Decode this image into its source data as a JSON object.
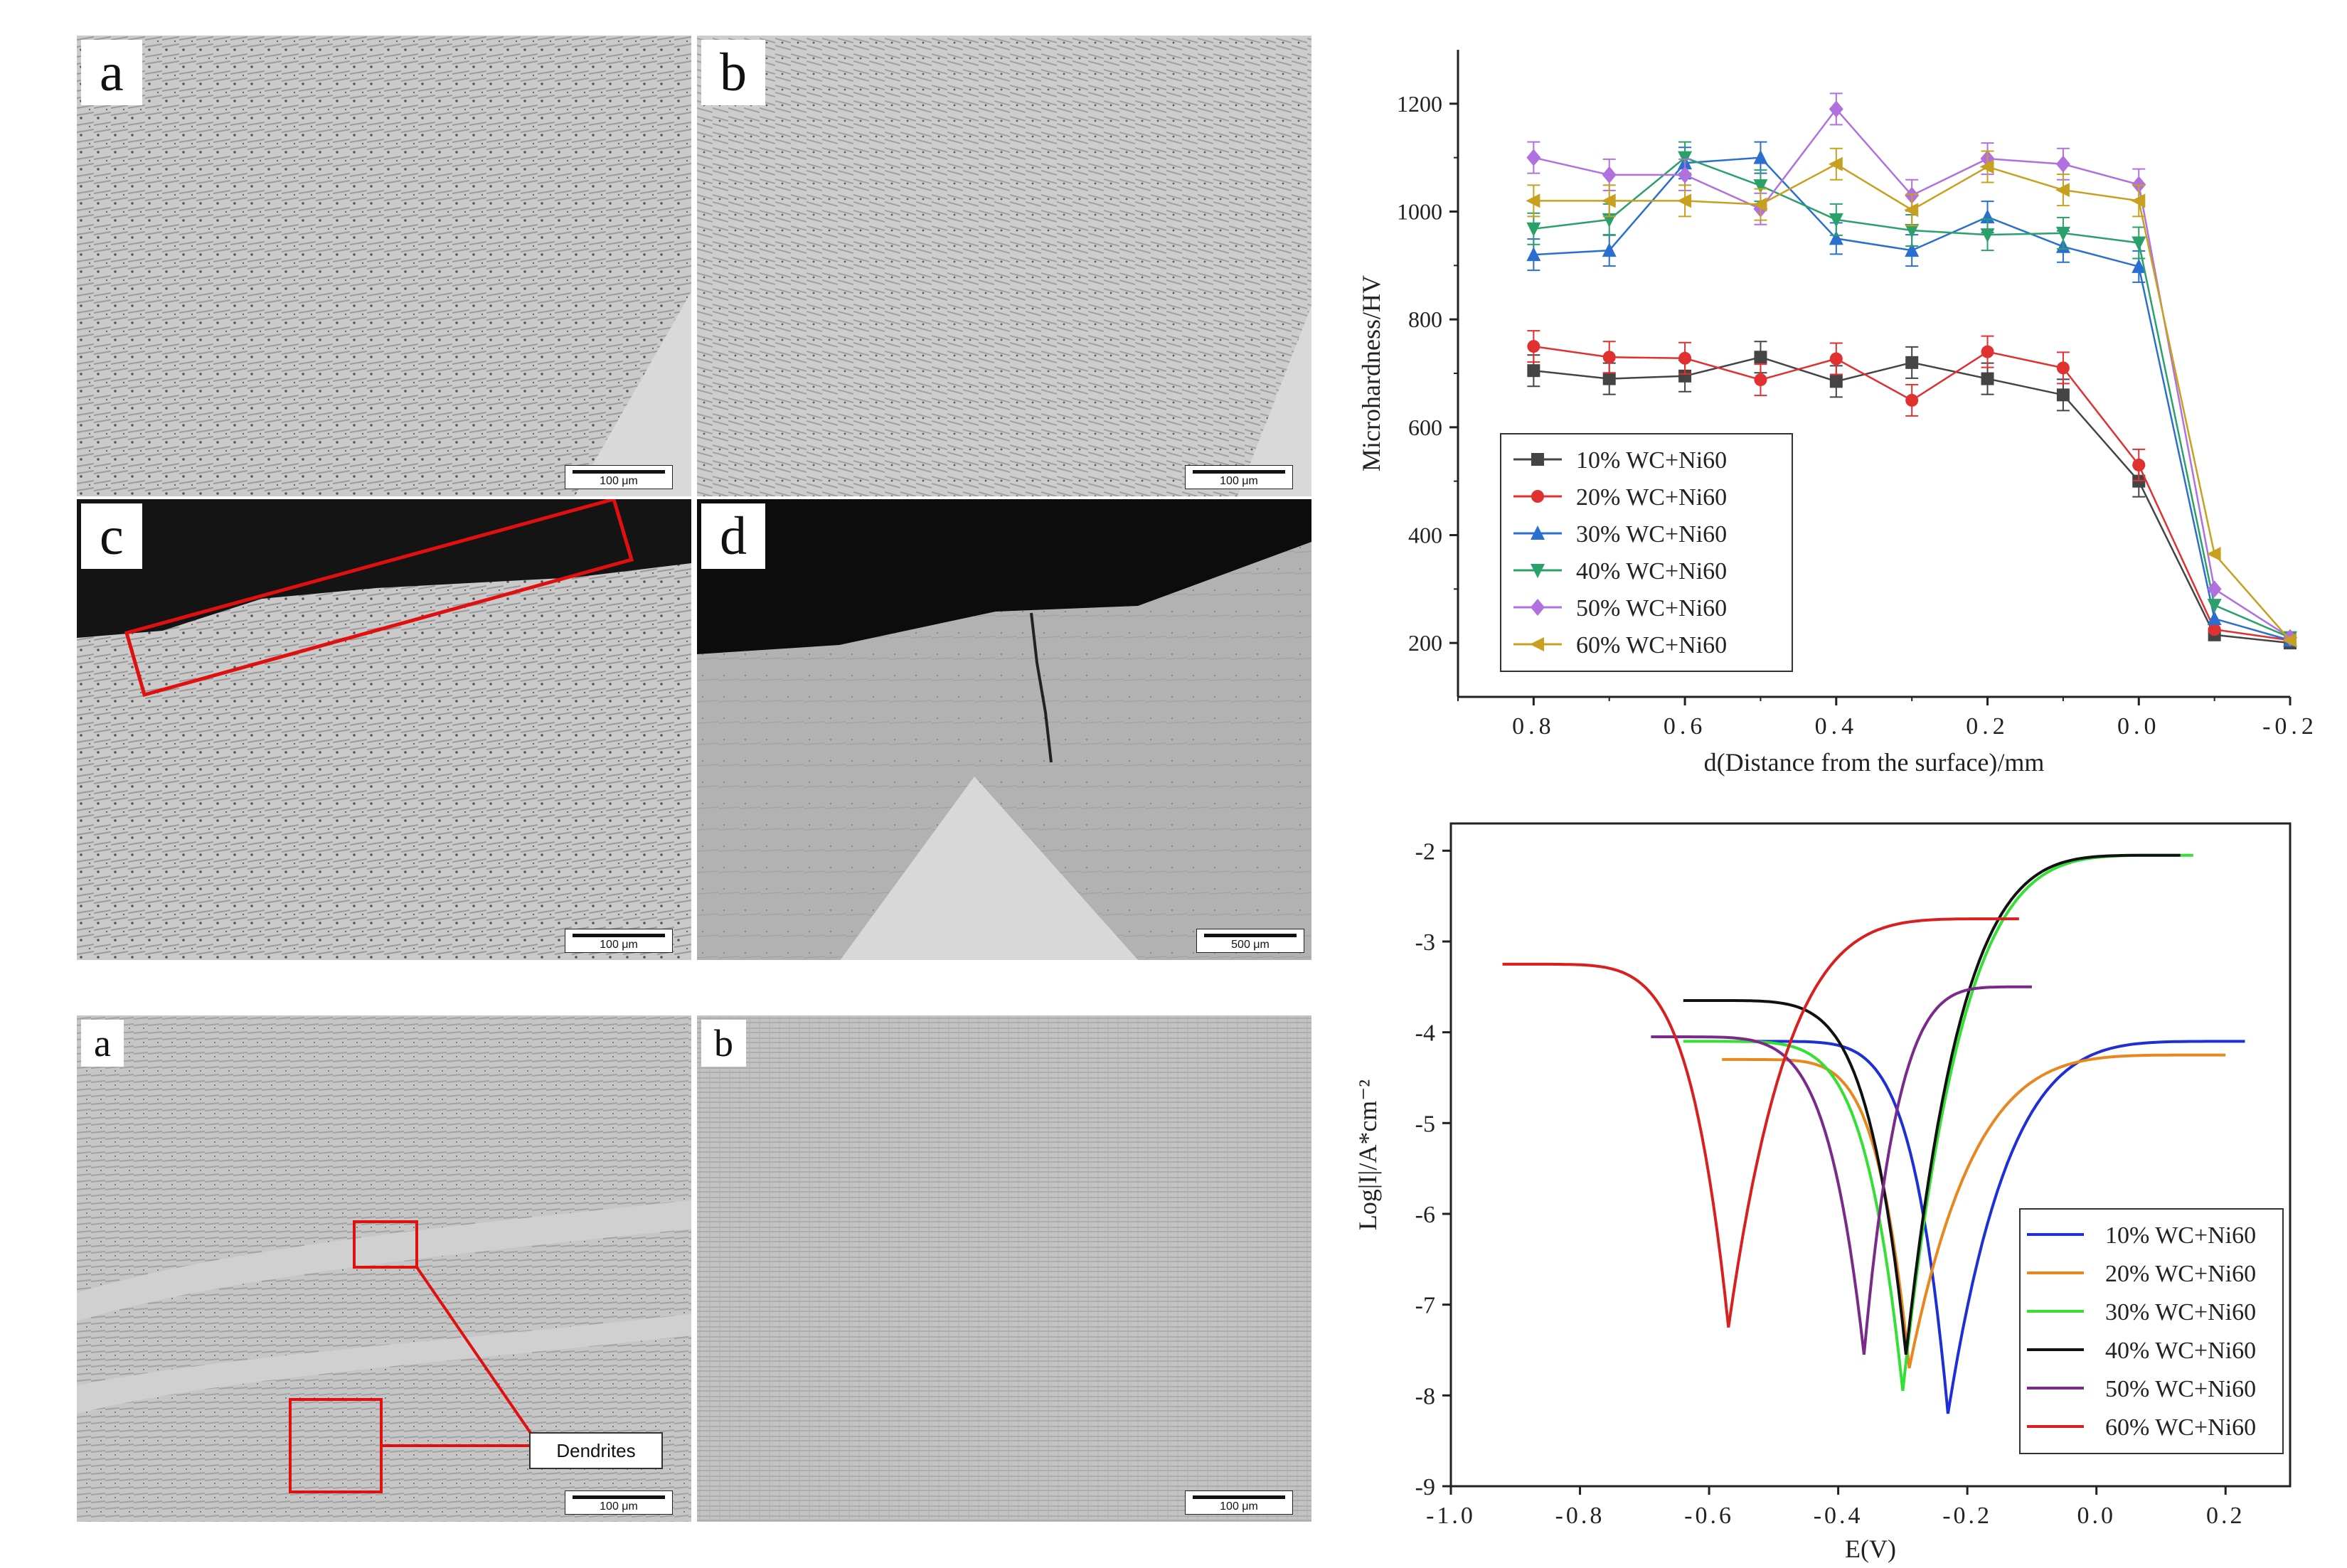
{
  "micrographs_top": [
    {
      "label": "a",
      "scale": "100 μm",
      "tone": "#c9c9c9"
    },
    {
      "label": "b",
      "scale": "100 μm",
      "tone": "#cbcbcb"
    },
    {
      "label": "c",
      "scale": "100 μm",
      "tone": "#cacaca"
    },
    {
      "label": "d",
      "scale": "500 μm",
      "tone": "#b5b5b5"
    }
  ],
  "micrographs_bottom": [
    {
      "label": "a",
      "scale": "100 μm",
      "tone": "#c4c4c4",
      "callout": "Dendrites"
    },
    {
      "label": "b",
      "scale": "100 μm",
      "tone": "#c2c2c2"
    }
  ],
  "chart_data": [
    {
      "type": "line",
      "xlabel": "d(Distance from the surface)/mm",
      "ylabel": "Microhardness/HV",
      "xlim": [
        0.9,
        -0.2
      ],
      "ylim": [
        100,
        1300
      ],
      "xticks": [
        "0.8",
        "0.6",
        "0.4",
        "0.2",
        "0.0",
        "-0.2"
      ],
      "yticks": [
        "200",
        "400",
        "600",
        "800",
        "1000",
        "1200"
      ],
      "legend_position": "lower-left",
      "x": [
        0.8,
        0.7,
        0.6,
        0.5,
        0.4,
        0.3,
        0.2,
        0.1,
        0.0,
        -0.1,
        -0.2
      ],
      "series": [
        {
          "name": "10% WC+Ni60",
          "color": "#444444",
          "marker": "square",
          "values": [
            705,
            690,
            695,
            730,
            685,
            720,
            690,
            660,
            500,
            215,
            200
          ]
        },
        {
          "name": "20% WC+Ni60",
          "color": "#e03030",
          "marker": "circle",
          "values": [
            750,
            730,
            728,
            688,
            727,
            650,
            740,
            710,
            530,
            225,
            205
          ]
        },
        {
          "name": "30% WC+Ni60",
          "color": "#2a6fd0",
          "marker": "triangle-up",
          "values": [
            920,
            928,
            1090,
            1100,
            950,
            928,
            990,
            935,
            898,
            245,
            205
          ]
        },
        {
          "name": "40% WC+Ni60",
          "color": "#2aa06a",
          "marker": "triangle-down",
          "values": [
            968,
            985,
            1100,
            1048,
            985,
            965,
            957,
            960,
            942,
            270,
            210
          ]
        },
        {
          "name": "50% WC+Ni60",
          "color": "#b070e0",
          "marker": "diamond",
          "values": [
            1100,
            1068,
            1068,
            1005,
            1190,
            1030,
            1098,
            1088,
            1050,
            300,
            210
          ]
        },
        {
          "name": "60% WC+Ni60",
          "color": "#c8a020",
          "marker": "triangle-left",
          "values": [
            1020,
            1020,
            1020,
            1013,
            1088,
            1003,
            1083,
            1040,
            1020,
            365,
            205
          ]
        }
      ]
    },
    {
      "type": "line",
      "xlabel": "E(V)",
      "ylabel": "Log|I|/A*cm⁻²",
      "xlim": [
        -1.0,
        0.3
      ],
      "ylim": [
        -9,
        -1.7
      ],
      "xticks": [
        "-1.0",
        "-0.8",
        "-0.6",
        "-0.4",
        "-0.2",
        "0.0",
        "0.2"
      ],
      "yticks": [
        "-2",
        "-3",
        "-4",
        "-5",
        "-6",
        "-7",
        "-8",
        "-9"
      ],
      "legend_position": "lower-right",
      "series": [
        {
          "name": "10% WC+Ni60",
          "color": "#1f2fd6",
          "Ecorr": -0.23,
          "logIcorr": -8.2,
          "start": [
            -0.55,
            -4.1
          ],
          "end": [
            0.23,
            -4.1
          ]
        },
        {
          "name": "20% WC+Ni60",
          "color": "#e8871e",
          "Ecorr": -0.29,
          "logIcorr": -7.7,
          "start": [
            -0.58,
            -4.3
          ],
          "end": [
            0.2,
            -4.25
          ]
        },
        {
          "name": "30% WC+Ni60",
          "color": "#35e035",
          "Ecorr": -0.3,
          "logIcorr": -7.95,
          "start": [
            -0.64,
            -4.1
          ],
          "end": [
            0.15,
            -2.05
          ]
        },
        {
          "name": "40% WC+Ni60",
          "color": "#111111",
          "Ecorr": -0.295,
          "logIcorr": -7.55,
          "start": [
            -0.64,
            -3.65
          ],
          "end": [
            0.13,
            -2.05
          ]
        },
        {
          "name": "50% WC+Ni60",
          "color": "#7a2a8a",
          "Ecorr": -0.36,
          "logIcorr": -7.55,
          "start": [
            -0.69,
            -4.05
          ],
          "end": [
            -0.1,
            -3.5
          ]
        },
        {
          "name": "60% WC+Ni60",
          "color": "#d92020",
          "Ecorr": -0.57,
          "logIcorr": -7.25,
          "start": [
            -0.92,
            -3.25
          ],
          "end": [
            -0.12,
            -2.75
          ]
        }
      ]
    }
  ]
}
